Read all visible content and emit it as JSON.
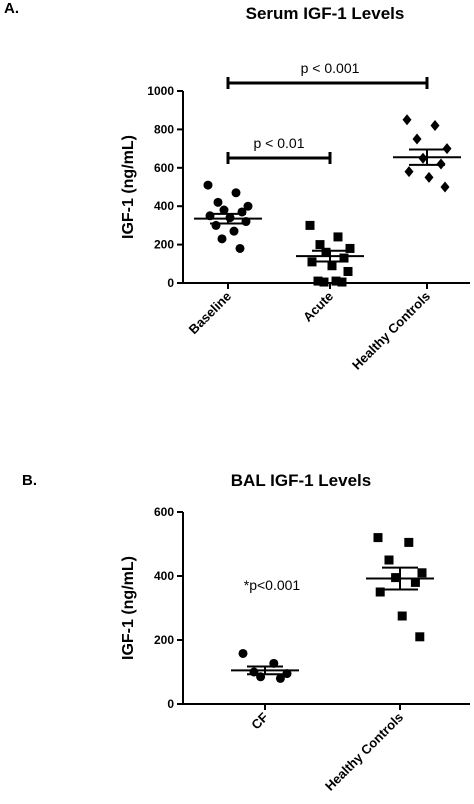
{
  "chart_data": [
    {
      "panel": "A.",
      "type": "scatter",
      "title": "Serum IGF-1 Levels",
      "ylabel": "IGF-1 (ng/mL)",
      "ylim": [
        0,
        1000
      ],
      "yticks": [
        0,
        200,
        400,
        600,
        800,
        1000
      ],
      "categories": [
        "Baseline",
        "Acute",
        "Healthy Controls"
      ],
      "series": [
        {
          "category": "Baseline",
          "marker": "circle",
          "mean": 335,
          "sem": 25,
          "values": [
            510,
            470,
            420,
            400,
            380,
            370,
            350,
            340,
            320,
            300,
            270,
            230,
            180
          ]
        },
        {
          "category": "Acute",
          "marker": "square",
          "mean": 140,
          "sem": 28,
          "values": [
            300,
            240,
            200,
            180,
            160,
            130,
            110,
            90,
            60,
            10,
            10,
            5,
            5
          ]
        },
        {
          "category": "Healthy Controls",
          "marker": "diamond",
          "mean": 655,
          "sem": 40,
          "values": [
            850,
            820,
            750,
            700,
            650,
            620,
            580,
            550,
            500
          ]
        }
      ],
      "annotations": [
        {
          "text": "p < 0.01",
          "from": "Baseline",
          "to": "Acute",
          "y": 660
        },
        {
          "text": "p < 0.001",
          "from": "Baseline",
          "to": "Healthy Controls",
          "y": 1000
        }
      ]
    },
    {
      "panel": "B.",
      "type": "scatter",
      "title": "BAL IGF-1 Levels",
      "ylabel": "IGF-1 (ng/mL)",
      "ylim": [
        0,
        600
      ],
      "yticks": [
        0,
        200,
        400,
        600
      ],
      "categories": [
        "CF",
        "Healthy Controls"
      ],
      "series": [
        {
          "category": "CF",
          "marker": "circle",
          "mean": 105,
          "sem": 12,
          "values": [
            158,
            127,
            100,
            95,
            85,
            80
          ]
        },
        {
          "category": "Healthy Controls",
          "marker": "square",
          "mean": 392,
          "sem": 34,
          "values": [
            520,
            505,
            450,
            410,
            395,
            380,
            350,
            275,
            210
          ]
        }
      ],
      "annotations": [
        {
          "text": "*p<0.001"
        }
      ]
    }
  ]
}
